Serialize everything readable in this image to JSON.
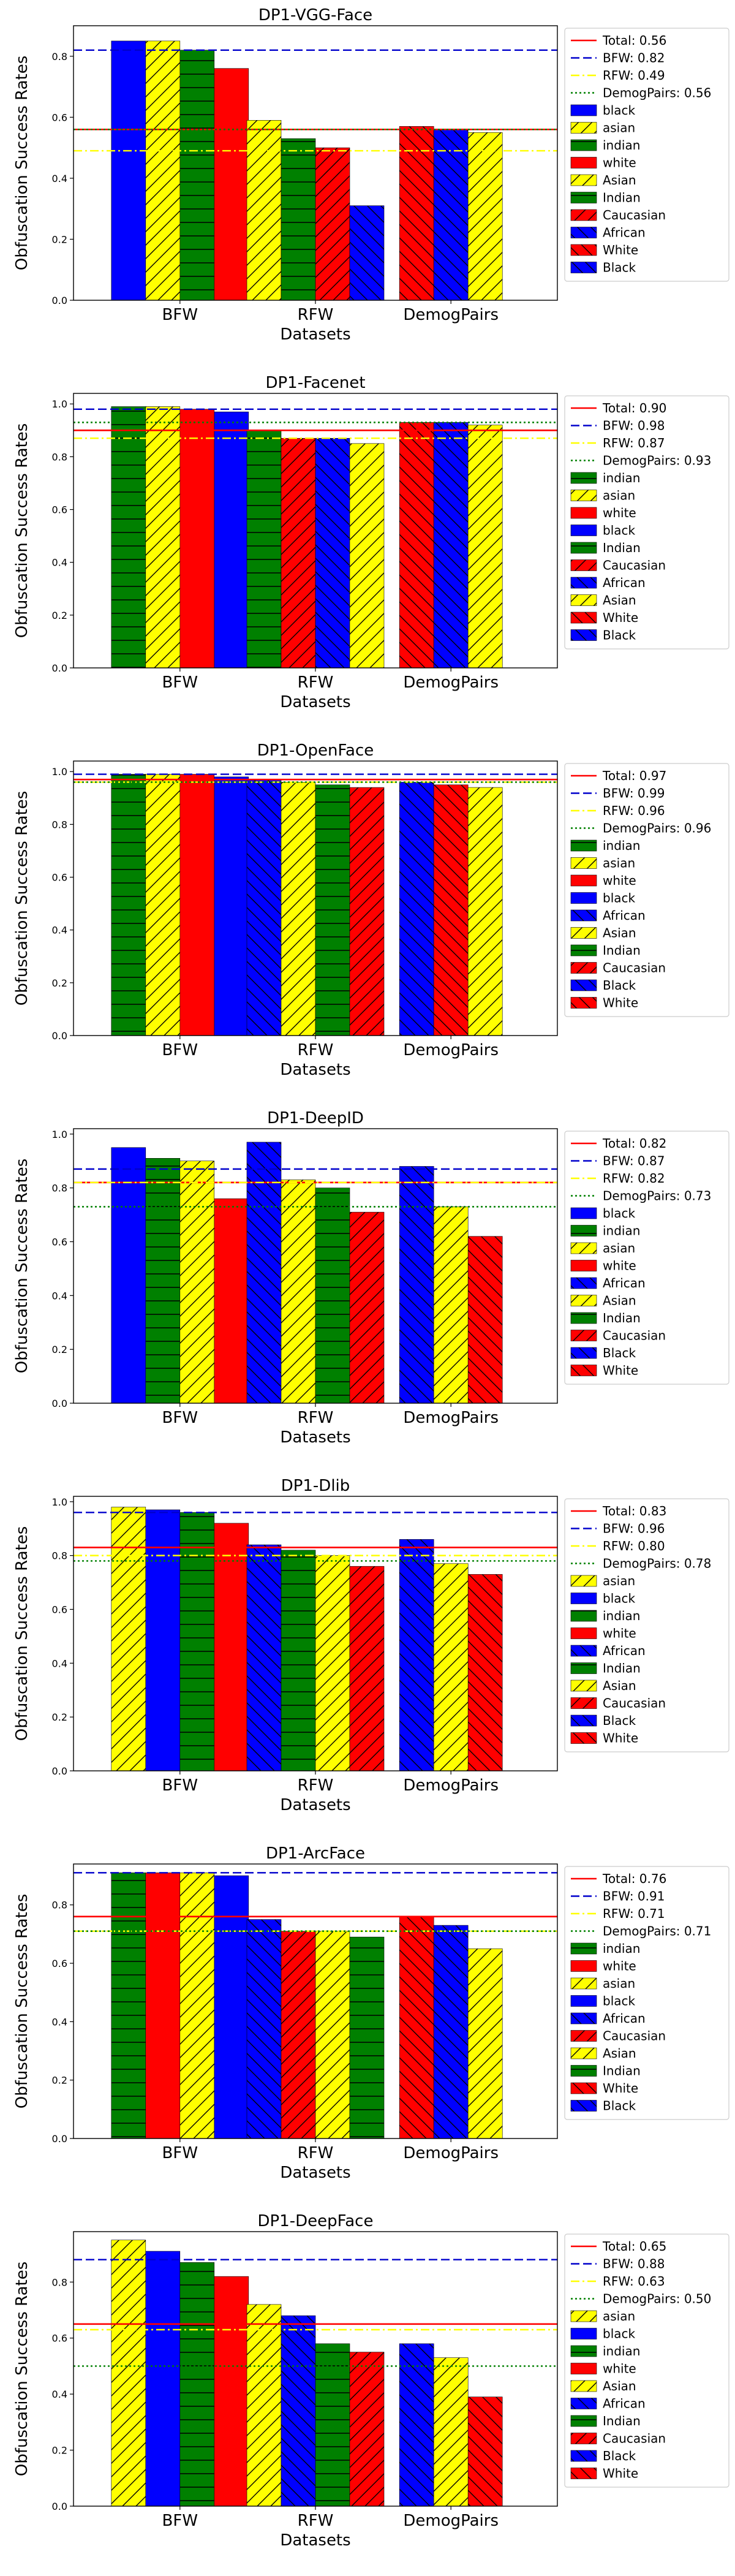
{
  "colors": {
    "black": "#0000ff",
    "asian": "#ffff00",
    "indian": "#008000",
    "white": "#ff0000",
    "African": "#0000ff",
    "Asian": "#ffff00",
    "Indian": "#008000",
    "Caucasian": "#ff0000",
    "Black": "#0000ff",
    "White": "#ff0000",
    "total_line": "#ff0000",
    "bfw_line": "#0000cc",
    "rfw_line": "#ffff00",
    "demog_line": "#008000"
  },
  "hatch": {
    "black": "none",
    "asian": "diag",
    "indian": "horiz",
    "white": "none",
    "African": "backdiag",
    "Asian": "diag",
    "Indian": "horiz",
    "Caucasian": "diag",
    "Black": "backdiag",
    "White": "backdiag"
  },
  "chart_data": [
    {
      "type": "bar",
      "title": "DP1-VGG-Face",
      "xlabel": "Datasets",
      "ylabel": "Obfuscation Success Rates",
      "ylim": [
        0,
        0.9
      ],
      "yticks": [
        0.0,
        0.2,
        0.4,
        0.6,
        0.8
      ],
      "categories": [
        "BFW",
        "RFW",
        "DemogPairs"
      ],
      "legend_position": "right-outside",
      "hlines": [
        {
          "label": "Total: 0.56",
          "value": 0.56,
          "style": "solid",
          "color_key": "total_line"
        },
        {
          "label": "BFW: 0.82",
          "value": 0.82,
          "style": "dashed",
          "color_key": "bfw_line"
        },
        {
          "label": "RFW: 0.49",
          "value": 0.49,
          "style": "dashdot",
          "color_key": "rfw_line"
        },
        {
          "label": "DemogPairs: 0.56",
          "value": 0.56,
          "style": "dotted",
          "color_key": "demog_line"
        }
      ],
      "groups": [
        {
          "dataset": "BFW",
          "bars": [
            {
              "name": "black",
              "value": 0.85
            },
            {
              "name": "asian",
              "value": 0.85
            },
            {
              "name": "indian",
              "value": 0.82
            },
            {
              "name": "white",
              "value": 0.76
            }
          ]
        },
        {
          "dataset": "RFW",
          "bars": [
            {
              "name": "Asian",
              "value": 0.59
            },
            {
              "name": "Indian",
              "value": 0.53
            },
            {
              "name": "Caucasian",
              "value": 0.5
            },
            {
              "name": "African",
              "value": 0.31
            }
          ]
        },
        {
          "dataset": "DemogPairs",
          "bars": [
            {
              "name": "White",
              "value": 0.57
            },
            {
              "name": "Black",
              "value": 0.56
            },
            {
              "name": "Asian",
              "value": 0.55
            }
          ]
        }
      ],
      "legend_entries": [
        "black",
        "asian",
        "indian",
        "white",
        "Asian",
        "Indian",
        "Caucasian",
        "African",
        "White",
        "Black"
      ]
    },
    {
      "type": "bar",
      "title": "DP1-Facenet",
      "xlabel": "Datasets",
      "ylabel": "Obfuscation Success Rates",
      "ylim": [
        0,
        1.04
      ],
      "yticks": [
        0.0,
        0.2,
        0.4,
        0.6,
        0.8,
        1.0
      ],
      "categories": [
        "BFW",
        "RFW",
        "DemogPairs"
      ],
      "legend_position": "right-outside",
      "hlines": [
        {
          "label": "Total: 0.90",
          "value": 0.9,
          "style": "solid",
          "color_key": "total_line"
        },
        {
          "label": "BFW: 0.98",
          "value": 0.98,
          "style": "dashed",
          "color_key": "bfw_line"
        },
        {
          "label": "RFW: 0.87",
          "value": 0.87,
          "style": "dashdot",
          "color_key": "rfw_line"
        },
        {
          "label": "DemogPairs: 0.93",
          "value": 0.93,
          "style": "dotted",
          "color_key": "demog_line"
        }
      ],
      "groups": [
        {
          "dataset": "BFW",
          "bars": [
            {
              "name": "indian",
              "value": 0.99
            },
            {
              "name": "asian",
              "value": 0.99
            },
            {
              "name": "white",
              "value": 0.98
            },
            {
              "name": "black",
              "value": 0.97
            }
          ]
        },
        {
          "dataset": "RFW",
          "bars": [
            {
              "name": "Indian",
              "value": 0.9
            },
            {
              "name": "Caucasian",
              "value": 0.87
            },
            {
              "name": "African",
              "value": 0.87
            },
            {
              "name": "Asian",
              "value": 0.85
            }
          ]
        },
        {
          "dataset": "DemogPairs",
          "bars": [
            {
              "name": "White",
              "value": 0.93
            },
            {
              "name": "Black",
              "value": 0.93
            },
            {
              "name": "Asian",
              "value": 0.92
            }
          ]
        }
      ],
      "legend_entries": [
        "indian",
        "asian",
        "white",
        "black",
        "Indian",
        "Caucasian",
        "African",
        "Asian",
        "White",
        "Black"
      ]
    },
    {
      "type": "bar",
      "title": "DP1-OpenFace",
      "xlabel": "Datasets",
      "ylabel": "Obfuscation Success Rates",
      "ylim": [
        0,
        1.04
      ],
      "yticks": [
        0.0,
        0.2,
        0.4,
        0.6,
        0.8,
        1.0
      ],
      "categories": [
        "BFW",
        "RFW",
        "DemogPairs"
      ],
      "legend_position": "right-outside",
      "hlines": [
        {
          "label": "Total: 0.97",
          "value": 0.97,
          "style": "solid",
          "color_key": "total_line"
        },
        {
          "label": "BFW: 0.99",
          "value": 0.99,
          "style": "dashed",
          "color_key": "bfw_line"
        },
        {
          "label": "RFW: 0.96",
          "value": 0.96,
          "style": "dashdot",
          "color_key": "rfw_line"
        },
        {
          "label": "DemogPairs: 0.96",
          "value": 0.96,
          "style": "dotted",
          "color_key": "demog_line"
        }
      ],
      "groups": [
        {
          "dataset": "BFW",
          "bars": [
            {
              "name": "indian",
              "value": 0.99
            },
            {
              "name": "asian",
              "value": 0.99
            },
            {
              "name": "white",
              "value": 0.99
            },
            {
              "name": "black",
              "value": 0.98
            }
          ]
        },
        {
          "dataset": "RFW",
          "bars": [
            {
              "name": "African",
              "value": 0.97
            },
            {
              "name": "Asian",
              "value": 0.96
            },
            {
              "name": "Indian",
              "value": 0.95
            },
            {
              "name": "Caucasian",
              "value": 0.94
            }
          ]
        },
        {
          "dataset": "DemogPairs",
          "bars": [
            {
              "name": "Black",
              "value": 0.96
            },
            {
              "name": "White",
              "value": 0.95
            },
            {
              "name": "Asian",
              "value": 0.94
            }
          ]
        }
      ],
      "legend_entries": [
        "indian",
        "asian",
        "white",
        "black",
        "African",
        "Asian",
        "Indian",
        "Caucasian",
        "Black",
        "White"
      ]
    },
    {
      "type": "bar",
      "title": "DP1-DeepID",
      "xlabel": "Datasets",
      "ylabel": "Obfuscation Success Rates",
      "ylim": [
        0,
        1.02
      ],
      "yticks": [
        0.0,
        0.2,
        0.4,
        0.6,
        0.8,
        1.0
      ],
      "categories": [
        "BFW",
        "RFW",
        "DemogPairs"
      ],
      "legend_position": "right-outside",
      "hlines": [
        {
          "label": "Total: 0.82",
          "value": 0.82,
          "style": "solid",
          "color_key": "total_line"
        },
        {
          "label": "BFW: 0.87",
          "value": 0.87,
          "style": "dashed",
          "color_key": "bfw_line"
        },
        {
          "label": "RFW: 0.82",
          "value": 0.82,
          "style": "dashdot",
          "color_key": "rfw_line"
        },
        {
          "label": "DemogPairs: 0.73",
          "value": 0.73,
          "style": "dotted",
          "color_key": "demog_line"
        }
      ],
      "groups": [
        {
          "dataset": "BFW",
          "bars": [
            {
              "name": "black",
              "value": 0.95
            },
            {
              "name": "indian",
              "value": 0.91
            },
            {
              "name": "asian",
              "value": 0.9
            },
            {
              "name": "white",
              "value": 0.76
            }
          ]
        },
        {
          "dataset": "RFW",
          "bars": [
            {
              "name": "African",
              "value": 0.97
            },
            {
              "name": "Asian",
              "value": 0.83
            },
            {
              "name": "Indian",
              "value": 0.8
            },
            {
              "name": "Caucasian",
              "value": 0.71
            }
          ]
        },
        {
          "dataset": "DemogPairs",
          "bars": [
            {
              "name": "Black",
              "value": 0.88
            },
            {
              "name": "Asian",
              "value": 0.73
            },
            {
              "name": "White",
              "value": 0.62
            }
          ]
        }
      ],
      "legend_entries": [
        "black",
        "indian",
        "asian",
        "white",
        "African",
        "Asian",
        "Indian",
        "Caucasian",
        "Black",
        "White"
      ]
    },
    {
      "type": "bar",
      "title": "DP1-Dlib",
      "xlabel": "Datasets",
      "ylabel": "Obfuscation Success Rates",
      "ylim": [
        0,
        1.02
      ],
      "yticks": [
        0.0,
        0.2,
        0.4,
        0.6,
        0.8,
        1.0
      ],
      "categories": [
        "BFW",
        "RFW",
        "DemogPairs"
      ],
      "legend_position": "right-outside",
      "hlines": [
        {
          "label": "Total: 0.83",
          "value": 0.83,
          "style": "solid",
          "color_key": "total_line"
        },
        {
          "label": "BFW: 0.96",
          "value": 0.96,
          "style": "dashed",
          "color_key": "bfw_line"
        },
        {
          "label": "RFW: 0.80",
          "value": 0.8,
          "style": "dashdot",
          "color_key": "rfw_line"
        },
        {
          "label": "DemogPairs: 0.78",
          "value": 0.78,
          "style": "dotted",
          "color_key": "demog_line"
        }
      ],
      "groups": [
        {
          "dataset": "BFW",
          "bars": [
            {
              "name": "asian",
              "value": 0.98
            },
            {
              "name": "black",
              "value": 0.97
            },
            {
              "name": "indian",
              "value": 0.96
            },
            {
              "name": "white",
              "value": 0.92
            }
          ]
        },
        {
          "dataset": "RFW",
          "bars": [
            {
              "name": "African",
              "value": 0.84
            },
            {
              "name": "Indian",
              "value": 0.82
            },
            {
              "name": "Asian",
              "value": 0.8
            },
            {
              "name": "Caucasian",
              "value": 0.76
            }
          ]
        },
        {
          "dataset": "DemogPairs",
          "bars": [
            {
              "name": "Black",
              "value": 0.86
            },
            {
              "name": "Asian",
              "value": 0.77
            },
            {
              "name": "White",
              "value": 0.73
            }
          ]
        }
      ],
      "legend_entries": [
        "asian",
        "black",
        "indian",
        "white",
        "African",
        "Indian",
        "Asian",
        "Caucasian",
        "Black",
        "White"
      ]
    },
    {
      "type": "bar",
      "title": "DP1-ArcFace",
      "xlabel": "Datasets",
      "ylabel": "Obfuscation Success Rates",
      "ylim": [
        0,
        0.94
      ],
      "yticks": [
        0.0,
        0.2,
        0.4,
        0.6,
        0.8
      ],
      "categories": [
        "BFW",
        "RFW",
        "DemogPairs"
      ],
      "legend_position": "right-outside",
      "hlines": [
        {
          "label": "Total: 0.76",
          "value": 0.76,
          "style": "solid",
          "color_key": "total_line"
        },
        {
          "label": "BFW: 0.91",
          "value": 0.91,
          "style": "dashed",
          "color_key": "bfw_line"
        },
        {
          "label": "RFW: 0.71",
          "value": 0.71,
          "style": "dashdot",
          "color_key": "rfw_line"
        },
        {
          "label": "DemogPairs: 0.71",
          "value": 0.71,
          "style": "dotted",
          "color_key": "demog_line"
        }
      ],
      "groups": [
        {
          "dataset": "BFW",
          "bars": [
            {
              "name": "indian",
              "value": 0.91
            },
            {
              "name": "white",
              "value": 0.91
            },
            {
              "name": "asian",
              "value": 0.91
            },
            {
              "name": "black",
              "value": 0.9
            }
          ]
        },
        {
          "dataset": "RFW",
          "bars": [
            {
              "name": "African",
              "value": 0.75
            },
            {
              "name": "Caucasian",
              "value": 0.71
            },
            {
              "name": "Asian",
              "value": 0.71
            },
            {
              "name": "Indian",
              "value": 0.69
            }
          ]
        },
        {
          "dataset": "DemogPairs",
          "bars": [
            {
              "name": "White",
              "value": 0.76
            },
            {
              "name": "Black",
              "value": 0.73
            },
            {
              "name": "Asian",
              "value": 0.65
            }
          ]
        }
      ],
      "legend_entries": [
        "indian",
        "white",
        "asian",
        "black",
        "African",
        "Caucasian",
        "Asian",
        "Indian",
        "White",
        "Black"
      ]
    },
    {
      "type": "bar",
      "title": "DP1-DeepFace",
      "xlabel": "Datasets",
      "ylabel": "Obfuscation Success Rates",
      "ylim": [
        0,
        0.98
      ],
      "yticks": [
        0.0,
        0.2,
        0.4,
        0.6,
        0.8
      ],
      "categories": [
        "BFW",
        "RFW",
        "DemogPairs"
      ],
      "legend_position": "right-outside",
      "hlines": [
        {
          "label": "Total: 0.65",
          "value": 0.65,
          "style": "solid",
          "color_key": "total_line"
        },
        {
          "label": "BFW: 0.88",
          "value": 0.88,
          "style": "dashed",
          "color_key": "bfw_line"
        },
        {
          "label": "RFW: 0.63",
          "value": 0.63,
          "style": "dashdot",
          "color_key": "rfw_line"
        },
        {
          "label": "DemogPairs: 0.50",
          "value": 0.5,
          "style": "dotted",
          "color_key": "demog_line"
        }
      ],
      "groups": [
        {
          "dataset": "BFW",
          "bars": [
            {
              "name": "asian",
              "value": 0.95
            },
            {
              "name": "black",
              "value": 0.91
            },
            {
              "name": "indian",
              "value": 0.87
            },
            {
              "name": "white",
              "value": 0.82
            }
          ]
        },
        {
          "dataset": "RFW",
          "bars": [
            {
              "name": "Asian",
              "value": 0.72
            },
            {
              "name": "African",
              "value": 0.68
            },
            {
              "name": "Indian",
              "value": 0.58
            },
            {
              "name": "Caucasian",
              "value": 0.55
            }
          ]
        },
        {
          "dataset": "DemogPairs",
          "bars": [
            {
              "name": "Black",
              "value": 0.58
            },
            {
              "name": "Asian",
              "value": 0.53
            },
            {
              "name": "White",
              "value": 0.39
            }
          ]
        }
      ],
      "legend_entries": [
        "asian",
        "black",
        "indian",
        "white",
        "Asian",
        "African",
        "Indian",
        "Caucasian",
        "Black",
        "White"
      ]
    }
  ]
}
